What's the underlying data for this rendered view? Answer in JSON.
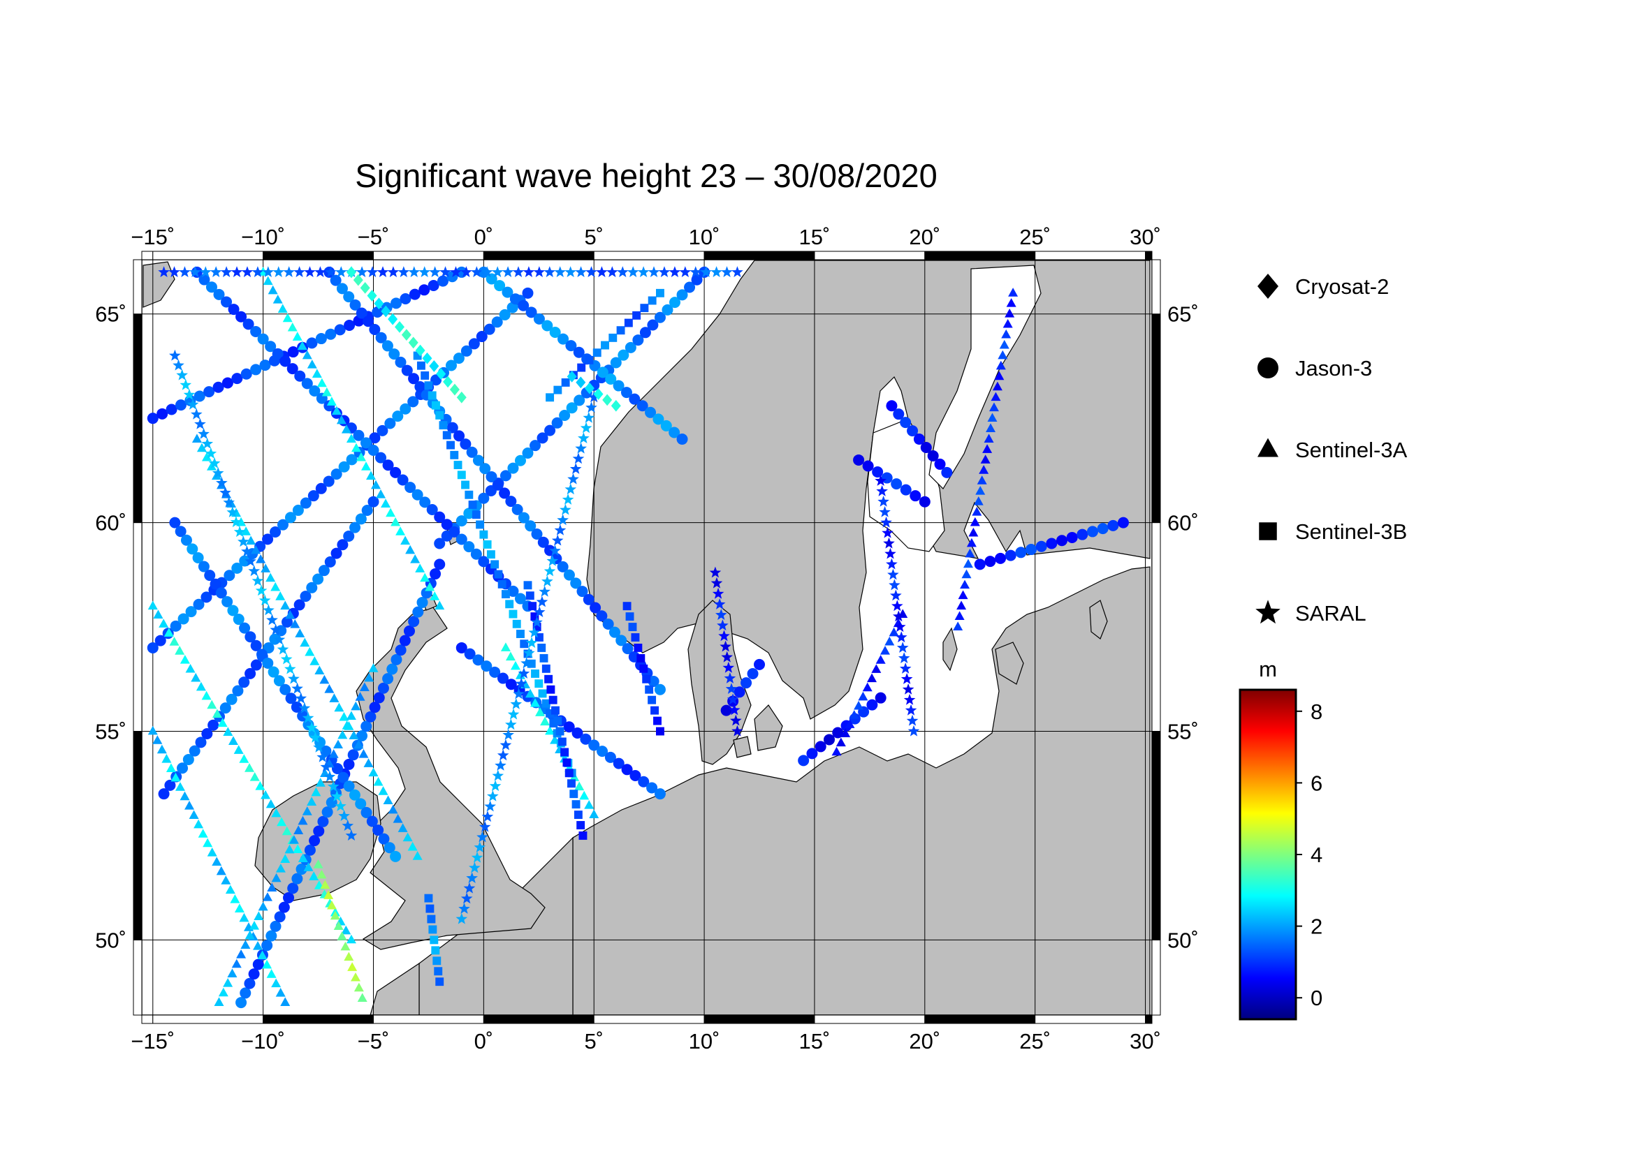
{
  "title": "Significant wave height 23 – 30/08/2020",
  "map": {
    "lon_range": [
      -15.5,
      30.3
    ],
    "lat_range": [
      48.2,
      66.3
    ],
    "lon_ticks": [
      {
        "value": -15,
        "label": "−15"
      },
      {
        "value": -10,
        "label": "−10"
      },
      {
        "value": -5,
        "label": "−5"
      },
      {
        "value": 0,
        "label": "0"
      },
      {
        "value": 5,
        "label": "5"
      },
      {
        "value": 10,
        "label": "10"
      },
      {
        "value": 15,
        "label": "15"
      },
      {
        "value": 20,
        "label": "20"
      },
      {
        "value": 25,
        "label": "25"
      },
      {
        "value": 30,
        "label": "30"
      }
    ],
    "lat_ticks": [
      {
        "value": 50,
        "label": "50"
      },
      {
        "value": 55,
        "label": "55"
      },
      {
        "value": 60,
        "label": "60"
      },
      {
        "value": 65,
        "label": "65"
      }
    ],
    "degree_symbol": "˚",
    "grid": true,
    "land_color": "#bebebe",
    "sea_color": "#ffffff"
  },
  "legend": {
    "items": [
      {
        "label": "Cryosat-2",
        "marker": "diamond"
      },
      {
        "label": "Jason-3",
        "marker": "circle"
      },
      {
        "label": "Sentinel-3A",
        "marker": "triangle"
      },
      {
        "label": "Sentinel-3B",
        "marker": "square"
      },
      {
        "label": "SARAL",
        "marker": "star"
      }
    ]
  },
  "colorbar": {
    "unit": "m",
    "range": [
      -0.6,
      8.6
    ],
    "ticks": [
      {
        "value": 0,
        "label": "0"
      },
      {
        "value": 2,
        "label": "2"
      },
      {
        "value": 4,
        "label": "4"
      },
      {
        "value": 6,
        "label": "6"
      },
      {
        "value": 8,
        "label": "8"
      }
    ],
    "colors": [
      "#00007f",
      "#0000ff",
      "#007fff",
      "#00ffff",
      "#7fff7f",
      "#ffff00",
      "#ff7f00",
      "#ff0000",
      "#7f0000"
    ]
  },
  "chart_data": {
    "type": "scatter",
    "title": "Significant wave height 23 – 30/08/2020",
    "value_unit": "m",
    "series": [
      {
        "name": "Jason-3",
        "marker": "circle",
        "tracks": [
          {
            "from": [
              -15.0,
              62.5
            ],
            "to": [
              -1.0,
              66.0
            ],
            "swh": 1.2
          },
          {
            "from": [
              -15.0,
              57.0
            ],
            "to": [
              2.0,
              65.5
            ],
            "swh": 1.5
          },
          {
            "from": [
              -14.5,
              53.5
            ],
            "to": [
              -5.0,
              60.5
            ],
            "swh": 1.4
          },
          {
            "from": [
              -11.0,
              48.5
            ],
            "to": [
              -2.0,
              59.0
            ],
            "swh": 1.3
          },
          {
            "from": [
              -2.0,
              59.5
            ],
            "to": [
              10.0,
              66.0
            ],
            "swh": 1.6
          },
          {
            "from": [
              -13.0,
              66.0
            ],
            "to": [
              2.0,
              58.0
            ],
            "swh": 1.3
          },
          {
            "from": [
              -7.0,
              66.0
            ],
            "to": [
              8.0,
              56.0
            ],
            "swh": 1.4
          },
          {
            "from": [
              0.0,
              66.0
            ],
            "to": [
              9.0,
              62.0
            ],
            "swh": 1.7
          },
          {
            "from": [
              -14.0,
              60.0
            ],
            "to": [
              -4.0,
              52.0
            ],
            "swh": 1.6
          },
          {
            "from": [
              -1.0,
              57.0
            ],
            "to": [
              8.0,
              53.5
            ],
            "swh": 1.2
          },
          {
            "from": [
              18.5,
              62.8
            ],
            "to": [
              21.0,
              61.2
            ],
            "swh": 0.7
          },
          {
            "from": [
              17.0,
              61.5
            ],
            "to": [
              20.0,
              60.5
            ],
            "swh": 0.8
          },
          {
            "from": [
              22.5,
              59.0
            ],
            "to": [
              29.0,
              60.0
            ],
            "swh": 0.9
          },
          {
            "from": [
              14.5,
              54.3
            ],
            "to": [
              18.0,
              55.8
            ],
            "swh": 0.6
          },
          {
            "from": [
              11.0,
              55.5
            ],
            "to": [
              12.5,
              56.6
            ],
            "swh": 0.7
          }
        ]
      },
      {
        "name": "Sentinel-3A",
        "marker": "triangle",
        "tracks": [
          {
            "from": [
              -15.0,
              55.0
            ],
            "to": [
              -9.0,
              48.5
            ],
            "swh": 2.4
          },
          {
            "from": [
              -13.0,
              62.0
            ],
            "to": [
              -3.0,
              52.0
            ],
            "swh": 2.2
          },
          {
            "from": [
              -10.0,
              66.0
            ],
            "to": [
              -2.0,
              58.0
            ],
            "swh": 2.6
          },
          {
            "from": [
              -15.0,
              58.0
            ],
            "to": [
              -6.0,
              50.0
            ],
            "swh": 2.8
          },
          {
            "from": [
              -12.0,
              48.5
            ],
            "to": [
              -5.0,
              56.5
            ],
            "swh": 2.1
          },
          {
            "from": [
              1.0,
              57.0
            ],
            "to": [
              5.0,
              53.0
            ],
            "swh": 2.7
          },
          {
            "from": [
              21.5,
              57.5
            ],
            "to": [
              24.0,
              65.5
            ],
            "swh": 0.9
          },
          {
            "from": [
              16.0,
              54.5
            ],
            "to": [
              19.0,
              57.8
            ],
            "swh": 0.8
          },
          {
            "from": [
              -7.5,
              51.8
            ],
            "to": [
              -5.5,
              48.6
            ],
            "swh": 4.2
          }
        ]
      },
      {
        "name": "Sentinel-3B",
        "marker": "square",
        "tracks": [
          {
            "from": [
              -3.0,
              64.0
            ],
            "to": [
              4.0,
              54.0
            ],
            "swh": 1.9
          },
          {
            "from": [
              2.0,
              58.5
            ],
            "to": [
              4.5,
              52.5
            ],
            "swh": 1.1
          },
          {
            "from": [
              6.5,
              58.0
            ],
            "to": [
              8.0,
              55.0
            ],
            "swh": 0.9
          },
          {
            "from": [
              -2.5,
              51.0
            ],
            "to": [
              -2.0,
              49.0
            ],
            "swh": 1.8
          },
          {
            "from": [
              8.0,
              65.5
            ],
            "to": [
              3.0,
              63.0
            ],
            "swh": 1.5
          }
        ]
      },
      {
        "name": "SARAL",
        "marker": "star",
        "tracks": [
          {
            "from": [
              -14.0,
              64.0
            ],
            "to": [
              -6.0,
              52.5
            ],
            "swh": 2.0
          },
          {
            "from": [
              5.0,
              63.0
            ],
            "to": [
              -1.0,
              50.5
            ],
            "swh": 1.8
          },
          {
            "from": [
              10.5,
              58.8
            ],
            "to": [
              11.5,
              55.0
            ],
            "swh": 0.7
          },
          {
            "from": [
              18.0,
              61.0
            ],
            "to": [
              19.5,
              55.0
            ],
            "swh": 0.8
          },
          {
            "from": [
              -14.5,
              66.0
            ],
            "to": [
              11.5,
              66.0
            ],
            "swh": 1.4
          }
        ]
      },
      {
        "name": "Cryosat-2",
        "marker": "diamond",
        "tracks": [
          {
            "from": [
              -6.0,
              66.0
            ],
            "to": [
              -1.0,
              63.0
            ],
            "swh": 3.0
          },
          {
            "from": [
              4.0,
              63.5
            ],
            "to": [
              6.0,
              62.8
            ],
            "swh": 2.8
          }
        ]
      }
    ]
  }
}
